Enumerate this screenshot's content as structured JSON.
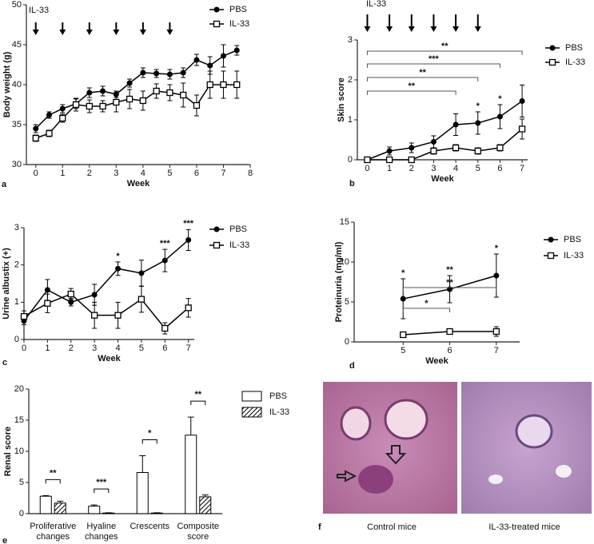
{
  "chart_data": [
    {
      "type": "line",
      "panel_label": "a",
      "annotation": "IL-33",
      "arrow_weeks": [
        0,
        1,
        2,
        3,
        4,
        5
      ],
      "xlabel": "Week",
      "ylabel": "Body weight (g)",
      "x": [
        0,
        0.5,
        1,
        1.5,
        2,
        2.5,
        3,
        3.5,
        4,
        4.5,
        5,
        5.5,
        6,
        6.5,
        7,
        7.5
      ],
      "xlim": [
        -0.35,
        8
      ],
      "xticks": [
        0,
        1,
        2,
        3,
        4,
        5,
        6,
        7,
        8
      ],
      "ylim": [
        30,
        50
      ],
      "yticks": [
        30,
        35,
        40,
        45,
        50
      ],
      "series": [
        {
          "name": "PBS",
          "color": "#000000",
          "marker": "circle",
          "values": [
            34.5,
            36.2,
            37,
            37.6,
            39,
            39.2,
            38.8,
            40.2,
            41.5,
            41.4,
            41.3,
            41.5,
            43.1,
            42.4,
            43.6,
            44.3
          ],
          "errors": [
            0.5,
            0.4,
            0.5,
            0.6,
            0.6,
            0.6,
            0.4,
            0.5,
            0.6,
            0.5,
            0.6,
            0.6,
            0.7,
            1.1,
            1.4,
            0.6
          ]
        },
        {
          "name": "IL-33",
          "color": "#000000",
          "marker": "square",
          "values": [
            33.3,
            33.9,
            35.8,
            37.5,
            37.3,
            37.3,
            37.8,
            38.2,
            38,
            39.2,
            39,
            38.7,
            37.4,
            40,
            40,
            40
          ],
          "errors": [
            0.4,
            0.4,
            0.5,
            0.8,
            0.8,
            0.7,
            1.2,
            1.2,
            1.2,
            0.9,
            1.0,
            1.5,
            1.3,
            1.7,
            1.7,
            1.7
          ]
        }
      ],
      "stars": [],
      "brackets": []
    },
    {
      "type": "line",
      "panel_label": "b",
      "annotation": "IL-33",
      "arrow_weeks": [
        0,
        1,
        2,
        3,
        4,
        5
      ],
      "xlabel": "Week",
      "ylabel": "Skin score",
      "x": [
        0,
        1,
        2,
        3,
        4,
        5,
        6,
        7
      ],
      "xlim": [
        -0.45,
        7.25
      ],
      "xticks": [
        0,
        1,
        2,
        3,
        4,
        5,
        6,
        7
      ],
      "ylim": [
        0,
        3
      ],
      "yticks": [
        0,
        1,
        2,
        3
      ],
      "series": [
        {
          "name": "PBS",
          "color": "#000000",
          "marker": "circle",
          "values": [
            0,
            0.22,
            0.3,
            0.45,
            0.88,
            0.92,
            1.08,
            1.47
          ],
          "errors": [
            0,
            0.1,
            0.12,
            0.15,
            0.27,
            0.28,
            0.3,
            0.4
          ]
        },
        {
          "name": "IL-33",
          "color": "#000000",
          "marker": "square",
          "values": [
            0,
            0,
            0,
            0.22,
            0.3,
            0.22,
            0.3,
            0.77
          ],
          "errors": [
            0,
            0,
            0,
            0.08,
            0.08,
            0.08,
            0.08,
            0.25
          ]
        }
      ],
      "stars": [
        {
          "x": 5,
          "label": "*"
        },
        {
          "x": 6,
          "label": "*"
        }
      ],
      "brackets": [
        {
          "from": 0,
          "to": 7,
          "label": "**"
        },
        {
          "from": 0,
          "to": 6,
          "label": "***"
        },
        {
          "from": 0,
          "to": 5,
          "label": "**"
        },
        {
          "from": 0,
          "to": 4,
          "label": "**"
        }
      ]
    },
    {
      "type": "line",
      "panel_label": "c",
      "xlabel": "Week",
      "ylabel": "Urine albustix (+)",
      "x": [
        0,
        1,
        2,
        3,
        4,
        5,
        6,
        7
      ],
      "xlim": [
        0,
        7.25
      ],
      "xticks": [
        0,
        1,
        2,
        3,
        4,
        5,
        6,
        7
      ],
      "ylim": [
        0,
        3
      ],
      "yticks": [
        0,
        1,
        2,
        3
      ],
      "series": [
        {
          "name": "PBS",
          "color": "#000000",
          "marker": "circle",
          "values": [
            0.5,
            1.33,
            1.0,
            1.2,
            1.9,
            1.78,
            2.12,
            2.67
          ],
          "errors": [
            0.1,
            0.28,
            0.1,
            0.28,
            0.18,
            0.35,
            0.3,
            0.28
          ]
        },
        {
          "name": "IL-33",
          "color": "#000000",
          "marker": "square",
          "values": [
            0.62,
            0.97,
            1.22,
            0.65,
            0.65,
            1.08,
            0.3,
            0.85
          ],
          "errors": [
            0.15,
            0.25,
            0.15,
            0.35,
            0.35,
            0.35,
            0.15,
            0.25
          ]
        }
      ],
      "stars": [
        {
          "x": 4,
          "label": "*"
        },
        {
          "x": 6,
          "label": "***"
        },
        {
          "x": 7,
          "label": "***"
        }
      ],
      "brackets": []
    },
    {
      "type": "line",
      "panel_label": "d",
      "xlabel": "Week",
      "ylabel": "Proteinuria (mg/ml)",
      "x": [
        5,
        6,
        7
      ],
      "xlim": [
        3.95,
        7.5
      ],
      "xticks": [
        5,
        6,
        7
      ],
      "ylim": [
        0,
        15
      ],
      "yticks": [
        0,
        5,
        10,
        15
      ],
      "series": [
        {
          "name": "PBS",
          "color": "#000000",
          "marker": "circle",
          "values": [
            5.4,
            6.6,
            8.3
          ],
          "errors": [
            2.5,
            1.7,
            2.7
          ]
        },
        {
          "name": "IL-33",
          "color": "#000000",
          "marker": "square",
          "values": [
            0.9,
            1.3,
            1.3
          ],
          "errors": [
            0.2,
            0.3,
            0.6
          ]
        }
      ],
      "stars": [
        {
          "x": 5,
          "label": "*"
        },
        {
          "x": 6,
          "label": "**"
        },
        {
          "x": 7,
          "label": "*"
        }
      ],
      "brackets": [
        {
          "from": 5,
          "to": 7,
          "label": "**"
        },
        {
          "from": 5,
          "to": 6,
          "label": "*"
        }
      ]
    },
    {
      "type": "bar",
      "panel_label": "e",
      "ylabel": "Renal score",
      "categories": [
        "Proliferative changes",
        "Hyaline changes",
        "Crescents",
        "Composite score"
      ],
      "ylim": [
        0,
        20
      ],
      "yticks": [
        0,
        5,
        10,
        15,
        20
      ],
      "series": [
        {
          "name": "PBS",
          "color": "#ffffff",
          "pattern": "none",
          "values": [
            2.8,
            1.2,
            6.6,
            12.6
          ],
          "errors": [
            0.1,
            0.2,
            2.7,
            2.9
          ]
        },
        {
          "name": "IL-33",
          "color": "#ffffff",
          "pattern": "hatch",
          "values": [
            1.7,
            0.1,
            0.1,
            2.7
          ],
          "errors": [
            0.3,
            0.05,
            0.05,
            0.3
          ]
        }
      ],
      "significance": [
        "**",
        "***",
        "*",
        "**"
      ]
    }
  ],
  "images": {
    "panel_label": "f",
    "captions": [
      "Control mice",
      "IL-33-treated mice"
    ]
  }
}
